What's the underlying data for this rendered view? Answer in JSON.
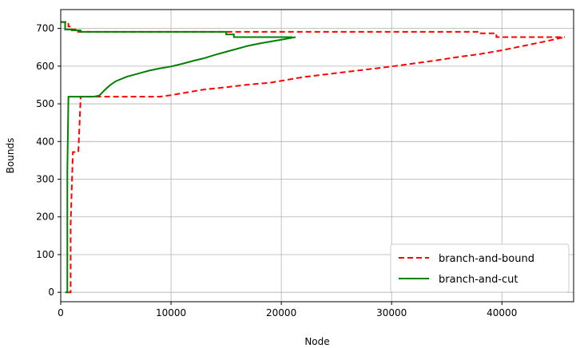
{
  "chart_data": {
    "type": "line",
    "title": "",
    "xlabel": "Node",
    "ylabel": "Bounds",
    "xlim": [
      0,
      46500
    ],
    "ylim": [
      -25,
      750
    ],
    "xticks": [
      0,
      10000,
      20000,
      30000,
      40000
    ],
    "yticks": [
      0,
      100,
      200,
      300,
      400,
      500,
      600,
      700
    ],
    "grid": true,
    "legend_position": "lower-right",
    "series": [
      {
        "name": "branch-and-bound",
        "color": "#ff0000",
        "style": "dashed",
        "lines": [
          {
            "label": "upper bound",
            "x": [
              0,
              700,
              700,
              1000,
              1000,
              1500,
              1500,
              15000,
              15000,
              38000,
              38000,
              39500,
              39500,
              45700
            ],
            "y": [
              717,
              717,
              705,
              705,
              697,
              697,
              691,
              691,
              691,
              691,
              687,
              687,
              677,
              677
            ]
          },
          {
            "label": "lower bound",
            "x": [
              600,
              900,
              900,
              1100,
              1100,
              1600,
              1600,
              1800,
              1800,
              3500,
              5000,
              9000,
              10000,
              11000,
              12000,
              13000,
              15000,
              17000,
              19000,
              20000,
              21000,
              22000,
              24000,
              26000,
              28000,
              30000,
              32000,
              34000,
              36000,
              38000,
              40000,
              42000,
              44000,
              45700
            ],
            "y": [
              0,
              0,
              180,
              370,
              372,
              372,
              372,
              512,
              519,
              519,
              519,
              519,
              523,
              528,
              533,
              538,
              544,
              551,
              556,
              561,
              566,
              571,
              578,
              585,
              592,
              599,
              607,
              615,
              624,
              632,
              642,
              654,
              666,
              677
            ]
          }
        ]
      },
      {
        "name": "branch-and-cut",
        "color": "#008000",
        "style": "solid",
        "lines": [
          {
            "label": "upper bound",
            "x": [
              0,
              400,
              400,
              1000,
              1000,
              1800,
              1800,
              15000,
              15000,
              15700,
              15700,
              21000
            ],
            "y": [
              717,
              717,
              697,
              697,
              695,
              695,
              691,
              691,
              684,
              684,
              677,
              677
            ]
          },
          {
            "label": "lower bound",
            "x": [
              400,
              600,
              600,
              700,
              700,
              3000,
              3500,
              4000,
              4500,
              5000,
              6000,
              7000,
              8000,
              9000,
              10000,
              11000,
              12000,
              13000,
              14000,
              15000,
              16000,
              17000,
              18000,
              19000,
              20000,
              21300
            ],
            "y": [
              0,
              0,
              320,
              519,
              519,
              519,
              522,
              537,
              550,
              560,
              572,
              580,
              588,
              594,
              599,
              606,
              614,
              621,
              630,
              638,
              646,
              654,
              660,
              665,
              670,
              677
            ]
          }
        ]
      }
    ]
  }
}
